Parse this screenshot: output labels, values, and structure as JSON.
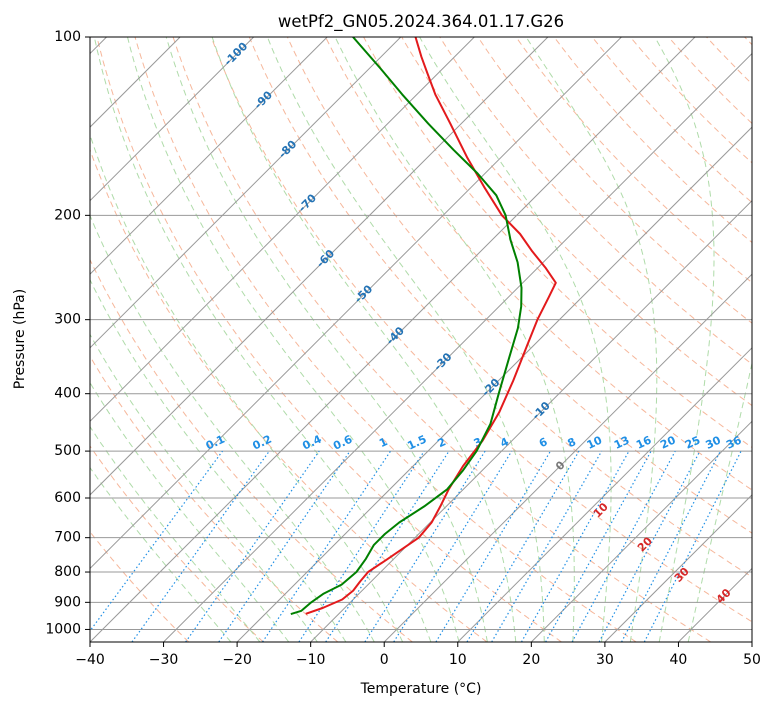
{
  "colors": {
    "temperature": "#e31a1c",
    "dewpoint": "#008000",
    "isotherm": "#999999",
    "isobar": "#999999",
    "dry_adiabat": "#f4a582",
    "moist_adiabat": "#a6d7a0",
    "mixing_ratio": "#1f8fe5",
    "isotherm_label": "#2473b5",
    "theta_e_label": "#d62728",
    "zero_label": "#777777"
  },
  "chart_data": {
    "type": "line",
    "subtype": "skew-t log-p",
    "title": "wetPf2_GN05.2024.364.01.17.G26",
    "xlabel": "Temperature (°C)",
    "ylabel": "Pressure (hPa)",
    "xlim": [
      -40,
      50
    ],
    "ylim": [
      1050,
      100
    ],
    "y_scale": "log",
    "grid": true,
    "x_ticks": [
      "−40",
      "−30",
      "−20",
      "−10",
      "0",
      "10",
      "20",
      "30",
      "40",
      "50"
    ],
    "y_ticks": [
      "100",
      "200",
      "300",
      "400",
      "500",
      "600",
      "700",
      "800",
      "900",
      "1000"
    ],
    "isotherm_labels": [
      "-100",
      "-90",
      "-80",
      "-70",
      "-60",
      "-50",
      "-40",
      "-30",
      "-20",
      "-10"
    ],
    "mixing_ratio_labels": [
      "0.1",
      "0.2",
      "0.4",
      "0.6",
      "1",
      "1.5",
      "2",
      "3",
      "4",
      "6",
      "8",
      "10",
      "13",
      "16",
      "20",
      "25",
      "30",
      "36"
    ],
    "theta_e_labels": [
      "0",
      "10",
      "20",
      "30",
      "40"
    ],
    "series": [
      {
        "key": "temperature",
        "points": [
          {
            "p": 941,
            "t": -14.5
          },
          {
            "p": 920,
            "t": -13.0
          },
          {
            "p": 890,
            "t": -11.5
          },
          {
            "p": 860,
            "t": -11.2
          },
          {
            "p": 830,
            "t": -11.5
          },
          {
            "p": 800,
            "t": -11.7
          },
          {
            "p": 760,
            "t": -10.8
          },
          {
            "p": 700,
            "t": -9.5
          },
          {
            "p": 660,
            "t": -9.8
          },
          {
            "p": 620,
            "t": -10.8
          },
          {
            "p": 580,
            "t": -12.0
          },
          {
            "p": 530,
            "t": -13.2
          },
          {
            "p": 480,
            "t": -14.0
          },
          {
            "p": 430,
            "t": -15.6
          },
          {
            "p": 380,
            "t": -18.0
          },
          {
            "p": 330,
            "t": -21.0
          },
          {
            "p": 300,
            "t": -23.0
          },
          {
            "p": 275,
            "t": -24.5
          },
          {
            "p": 260,
            "t": -25.5
          },
          {
            "p": 245,
            "t": -29.0
          },
          {
            "p": 230,
            "t": -33.0
          },
          {
            "p": 215,
            "t": -37.0
          },
          {
            "p": 200,
            "t": -42.0
          },
          {
            "p": 180,
            "t": -48.0
          },
          {
            "p": 160,
            "t": -54.5
          },
          {
            "p": 140,
            "t": -61.5
          },
          {
            "p": 125,
            "t": -67.5
          },
          {
            "p": 115,
            "t": -71.5
          },
          {
            "p": 108,
            "t": -74.5
          },
          {
            "p": 100,
            "t": -78.0
          }
        ]
      },
      {
        "key": "dewpoint",
        "points": [
          {
            "p": 942,
            "t": -16.5
          },
          {
            "p": 930,
            "t": -15.5
          },
          {
            "p": 900,
            "t": -15.3
          },
          {
            "p": 870,
            "t": -14.8
          },
          {
            "p": 840,
            "t": -13.6
          },
          {
            "p": 800,
            "t": -13.3
          },
          {
            "p": 760,
            "t": -13.8
          },
          {
            "p": 720,
            "t": -14.6
          },
          {
            "p": 690,
            "t": -14.6
          },
          {
            "p": 660,
            "t": -14.2
          },
          {
            "p": 620,
            "t": -13.0
          },
          {
            "p": 580,
            "t": -12.2
          },
          {
            "p": 540,
            "t": -12.6
          },
          {
            "p": 500,
            "t": -13.4
          },
          {
            "p": 450,
            "t": -15.2
          },
          {
            "p": 400,
            "t": -18.2
          },
          {
            "p": 350,
            "t": -21.5
          },
          {
            "p": 310,
            "t": -24.5
          },
          {
            "p": 285,
            "t": -27.0
          },
          {
            "p": 265,
            "t": -29.5
          },
          {
            "p": 240,
            "t": -33.5
          },
          {
            "p": 220,
            "t": -37.5
          },
          {
            "p": 200,
            "t": -41.5
          },
          {
            "p": 185,
            "t": -45.5
          },
          {
            "p": 170,
            "t": -51.0
          },
          {
            "p": 155,
            "t": -57.5
          },
          {
            "p": 140,
            "t": -64.5
          },
          {
            "p": 125,
            "t": -72.0
          },
          {
            "p": 113,
            "t": -78.5
          },
          {
            "p": 100,
            "t": -86.5
          }
        ]
      }
    ]
  }
}
